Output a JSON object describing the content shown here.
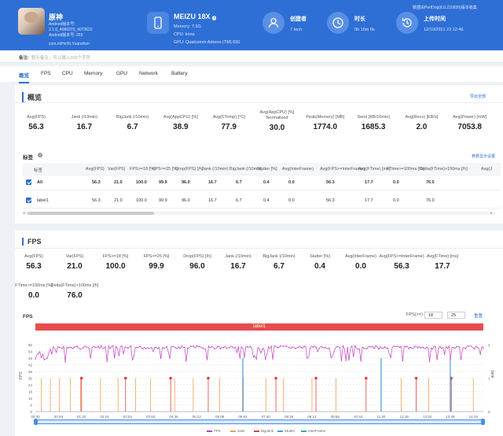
{
  "header": {
    "game_name": "原神",
    "version_lines": [
      "Android版本号:",
      "2.1.0_4086379_4073622",
      "Android版本号: 255"
    ],
    "package": "com.miHoYo.Yuanshen",
    "device_name": "MEIZU 18X",
    "device_badge": "i",
    "memory": "Memory: 7.5G",
    "cpu": "CPU: kona",
    "gpu": "GPU: Qualcomm Adreno (TM) 650",
    "creator_label": "创建者",
    "creator_value": "7 tech",
    "duration_label": "时长",
    "duration_value": "0h 15m 0s",
    "upload_label": "上传时间",
    "upload_value": "12/10/2021 22:12:46",
    "top_right": "数据由PerfDog(6.0.210830)版本收集",
    "accent": "#2e6fd6"
  },
  "note": {
    "label": "备注:",
    "placeholder": "暂无备注，可以输入200个字符"
  },
  "tabs": [
    "概览",
    "FPS",
    "CPU",
    "Memory",
    "GPU",
    "Network",
    "Battery"
  ],
  "overview": {
    "title": "概览",
    "export": "导出全部",
    "stats": [
      {
        "k": "Avg(FPS)",
        "v": "56.3"
      },
      {
        "k": "Jank (/10min)",
        "v": "16.7"
      },
      {
        "k": "BigJank (/10min)",
        "v": "6.7"
      },
      {
        "k": "Avg(AppCPU) [%]",
        "v": "38.9"
      },
      {
        "k": "Avg(CTemp) [°C]",
        "v": "77.9"
      },
      {
        "k": "Avg(AppCPU) [%] Normalized",
        "v": "30.0"
      },
      {
        "k": "Peak(Memory) [MB]",
        "v": "1774.0"
      },
      {
        "k": "Send [KB/10min]",
        "v": "1685.3"
      },
      {
        "k": "Avg(Recv) [KB/s]",
        "v": "2.0"
      },
      {
        "k": "Avg(Power) [mW]",
        "v": "7053.8"
      }
    ],
    "label_title": "标签",
    "label_link": "参数显示设置",
    "table_headers": [
      "标签",
      "Avg(FPS)",
      "Var(FPS)",
      "FPS>=18 [%]",
      "FPS>=25 [%]",
      "Drop(FPS) [/h]",
      "Jank (/10min)",
      "BigJank (/10min)",
      "Stutter [%]",
      "Avg(InterFrame)",
      "Avg(FPS>=InterFrame)",
      "Avg(FTime) [ms]",
      "FTime>=100ms [%]",
      "Delta(FTime)>100ms [/h]",
      "Avg(J"
    ],
    "table_rows": [
      [
        "All",
        "56.3",
        "21.0",
        "100.0",
        "99.9",
        "96.0",
        "16.7",
        "6.7",
        "0.4",
        "0.0",
        "56.3",
        "17.7",
        "0.0",
        "76.0"
      ],
      [
        "label1",
        "56.3",
        "21.0",
        "100.0",
        "99.9",
        "96.0",
        "16.7",
        "6.7",
        "0.4",
        "0.0",
        "56.3",
        "17.7",
        "0.0",
        "76.0"
      ]
    ]
  },
  "fps_panel": {
    "title": "FPS",
    "stats_row1": [
      {
        "k": "Avg(FPS)",
        "v": "56.3"
      },
      {
        "k": "Var(FPS)",
        "v": "21.0"
      },
      {
        "k": "FPS>=18 [%]",
        "v": "100.0"
      },
      {
        "k": "FPS>=25 [%]",
        "v": "99.9"
      },
      {
        "k": "Drop(FPS) [/h]",
        "v": "96.0"
      },
      {
        "k": "Jank (/10min)",
        "v": "16.7"
      },
      {
        "k": "BigJank (/10min)",
        "v": "6.7"
      },
      {
        "k": "Stutter [%]",
        "v": "0.4"
      },
      {
        "k": "Avg(InterFrame)",
        "v": "0.0"
      },
      {
        "k": "Avg(FPS>=InterFrame)",
        "v": "56.3"
      },
      {
        "k": "Avg(FTime) [ms]",
        "v": "17.7"
      }
    ],
    "stats_row2": [
      {
        "k": "FTime>=100ms [%]",
        "v": "0.0"
      },
      {
        "k": "Delta(FTime)>100ms [/h]",
        "v": "76.0"
      }
    ],
    "chart_label": "FPS",
    "fps_filter_label": "FPS(>=)",
    "fps_filter_1": "18",
    "fps_filter_2": "25",
    "reset": "重置",
    "band_label": "label1"
  },
  "chart_data": {
    "type": "line",
    "title": "FPS",
    "ylabel": "FPS",
    "y2label": "Jank",
    "ylim": [
      0,
      60
    ],
    "y_ticks": [
      "60",
      "54",
      "48",
      "42",
      "36",
      "30",
      "24",
      "18",
      "12",
      "6",
      "0"
    ],
    "y2_ticks": [
      "2",
      "1",
      "0"
    ],
    "x_ticks": [
      "00:00",
      "00:46",
      "01:32",
      "02:18",
      "03:04",
      "03:50",
      "04:36",
      "05:22",
      "06:08",
      "06:54",
      "07:40",
      "08:26",
      "09:12",
      "09:58",
      "10:44",
      "11:30",
      "12:16",
      "13:02",
      "13:48",
      "14:34"
    ],
    "series": [
      {
        "name": "FPS",
        "color": "#c13fbf",
        "baseline": 59,
        "min": 44
      },
      {
        "name": "Jank",
        "color": "#f0a050",
        "x": [
          "00:12",
          "00:30",
          "00:48",
          "01:10",
          "01:30",
          "02:10",
          "02:45",
          "03:20",
          "03:50",
          "04:38",
          "05:15",
          "06:08",
          "06:55",
          "07:40",
          "08:15",
          "09:12",
          "10:00",
          "11:30",
          "12:10",
          "13:05",
          "13:50",
          "14:34"
        ]
      },
      {
        "name": "BigJank",
        "color": "#e04040",
        "x": [
          "01:32",
          "03:00",
          "04:30",
          "05:45",
          "08:00",
          "09:20",
          "11:00",
          "12:40",
          "13:50"
        ]
      },
      {
        "name": "Stutter",
        "color": "#4a9be0",
        "x": [
          "06:54",
          "11:30",
          "13:48"
        ]
      },
      {
        "name": "InterFrame",
        "color": "#3aa8a0"
      }
    ]
  }
}
